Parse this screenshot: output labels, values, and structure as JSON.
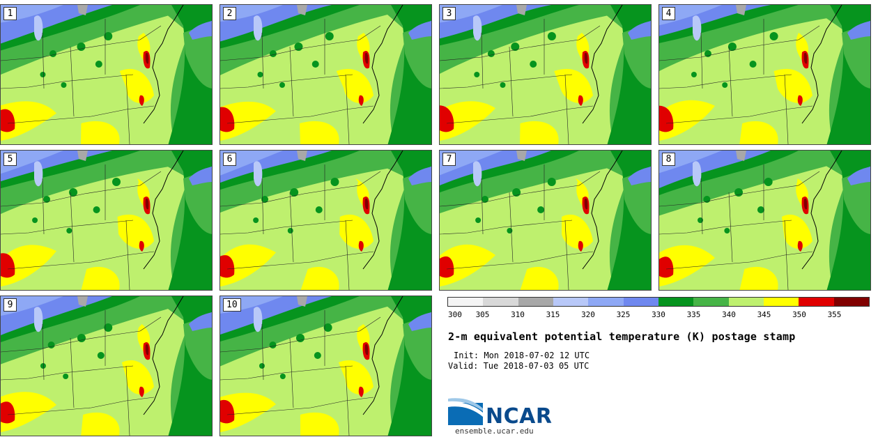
{
  "panels": [
    "1",
    "2",
    "3",
    "4",
    "5",
    "6",
    "7",
    "8",
    "9",
    "10"
  ],
  "legend": {
    "ticks": [
      "300",
      "305",
      "310",
      "315",
      "320",
      "325",
      "330",
      "335",
      "340",
      "345",
      "350",
      "355"
    ],
    "colors": [
      "#f4f4f4",
      "#d8d8d8",
      "#a8a8a8",
      "#b8c8f8",
      "#8ea8f5",
      "#6f88ef",
      "#06941e",
      "#46b446",
      "#bef06e",
      "#ffff00",
      "#e00000",
      "#800000"
    ]
  },
  "title": "2-m equivalent potential temperature (K) postage stamp",
  "init": "Init: Mon 2018-07-02 12 UTC",
  "valid": "Valid: Tue 2018-07-03 05 UTC",
  "logo": {
    "name": "NCAR",
    "url": "ensemble.ucar.edu"
  }
}
